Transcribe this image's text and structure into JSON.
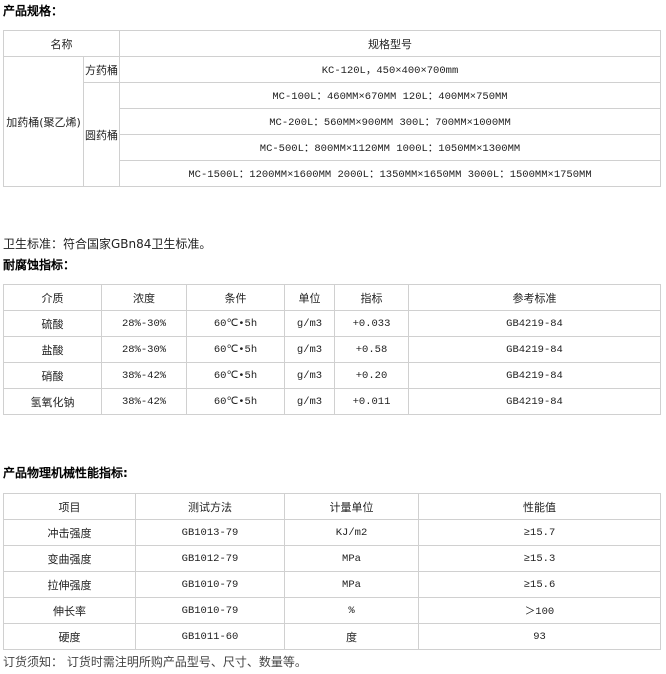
{
  "spec": {
    "heading": "产品规格：",
    "col_name": "名称",
    "col_model": "规格型号",
    "product": "加药桶(聚乙烯)",
    "square": "方药桶",
    "round": "圆药桶",
    "square_rows": [
      "KC-120L，450×400×700mm"
    ],
    "round_rows": [
      "MC-100L：460MM×670MM 120L：400MM×750MM",
      "MC-200L：560MM×900MM 300L：700MM×1000MM",
      "MC-500L：800MM×1120MM 1000L：1050MM×1300MM",
      "MC-1500L：1200MM×1600MM  2000L：1350MM×1650MM 3000L：1500MM×1750MM"
    ]
  },
  "hygiene": "卫生标准：符合国家GBn84卫生标准。",
  "corrosion": {
    "heading": "耐腐蚀指标：",
    "headers": [
      "介质",
      "浓度",
      "条件",
      "单位",
      "指标",
      "参考标准"
    ],
    "rows": [
      [
        "硫酸",
        "28%-30%",
        "60℃•5h",
        "g/m3",
        "+0.033",
        "GB4219-84"
      ],
      [
        "盐酸",
        "28%-30%",
        "60℃•5h",
        "g/m3",
        "+0.58",
        "GB4219-84"
      ],
      [
        "硝酸",
        "38%-42%",
        "60℃•5h",
        "g/m3",
        "+0.20",
        "GB4219-84"
      ],
      [
        "氢氧化钠",
        "38%-42%",
        "60℃•5h",
        "g/m3",
        "+0.011",
        "GB4219-84"
      ]
    ]
  },
  "physical": {
    "heading": "产品物理机械性能指标:",
    "headers": [
      "项目",
      "测试方法",
      "计量单位",
      "性能值"
    ],
    "rows": [
      [
        "冲击强度",
        "GB1013-79",
        "KJ/m2",
        "≥15.7"
      ],
      [
        "变曲强度",
        "GB1012-79",
        "MPa",
        "≥15.3"
      ],
      [
        "拉伸强度",
        "GB1010-79",
        "MPa",
        "≥15.6"
      ],
      [
        "伸长率",
        "GB1010-79",
        "%",
        "＞100"
      ],
      [
        "硬度",
        "GB1011-60",
        "度",
        "93"
      ]
    ]
  },
  "order_note": "订货须知： 订货时需注明所购产品型号、尺寸、数量等。"
}
